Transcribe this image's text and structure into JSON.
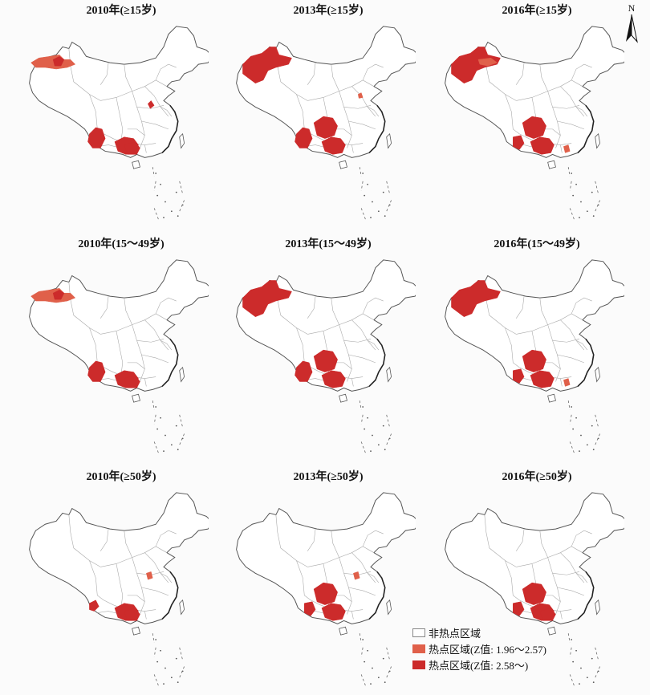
{
  "compass": {
    "label": "N",
    "icon": "north-arrow-icon"
  },
  "colors": {
    "non_hotspot": "#ffffff",
    "hotspot_low": "#e0604a",
    "hotspot_high": "#cc2b2b",
    "border": "#555555"
  },
  "panels": [
    {
      "title": "2010年(≥15岁)",
      "hotspots": [
        "xj-north-low",
        "xj-small",
        "yn",
        "gx",
        "gd-west",
        "jx-dot"
      ]
    },
    {
      "title": "2013年(≥15岁)",
      "hotspots": [
        "xj-big",
        "yn",
        "gx",
        "gz",
        "hn-dot"
      ]
    },
    {
      "title": "2016年(≥15岁)",
      "hotspots": [
        "xj-big",
        "xj-low",
        "gz",
        "gx",
        "yn-east",
        "gd-dot"
      ]
    },
    {
      "title": "2010年(15～49岁)",
      "hotspots": [
        "xj-north-low",
        "xj-small",
        "yn",
        "gx",
        "gd-west"
      ]
    },
    {
      "title": "2013年(15～49岁)",
      "hotspots": [
        "xj-big",
        "yn",
        "gz",
        "gx"
      ]
    },
    {
      "title": "2016年(15～49岁)",
      "hotspots": [
        "xj-big",
        "gz",
        "gx",
        "yn-east",
        "gd-dot"
      ]
    },
    {
      "title": "2010年(≥50岁)",
      "hotspots": [
        "yn-west",
        "gx",
        "gd-west",
        "hn-dot2"
      ]
    },
    {
      "title": "2013年(≥50岁)",
      "hotspots": [
        "gz",
        "gx",
        "yn-east",
        "hn-dot2"
      ]
    },
    {
      "title": "2016年(≥50岁)",
      "hotspots": [
        "gz",
        "gx",
        "gd-west",
        "yn-east"
      ]
    }
  ],
  "legend": {
    "items": [
      {
        "label": "非热点区域",
        "color": "#ffffff"
      },
      {
        "label": "热点区域(Z值: 1.96～2.57)",
        "color": "#e0604a"
      },
      {
        "label": "热点区域(Z值: 2.58～)",
        "color": "#cc2b2b"
      }
    ]
  }
}
